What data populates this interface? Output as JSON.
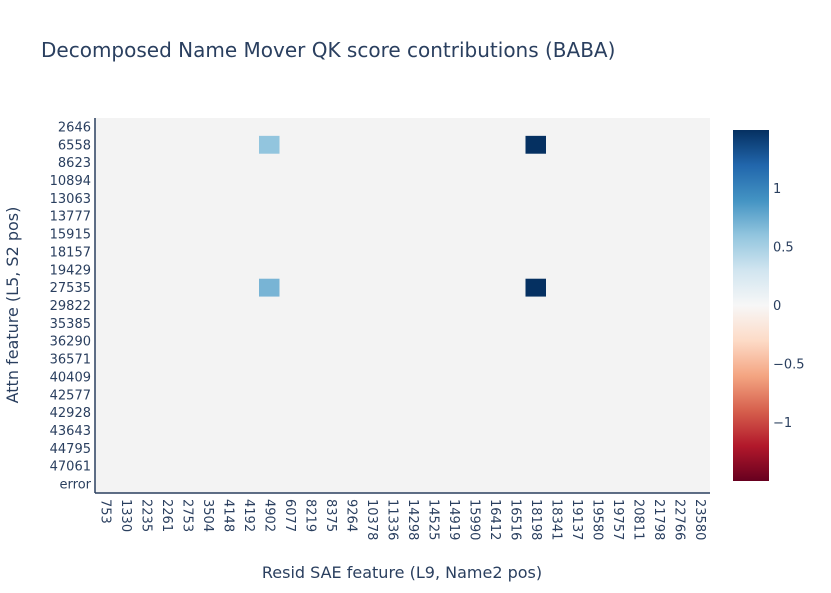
{
  "chart_data": {
    "type": "heatmap",
    "title": "Decomposed Name Mover QK score contributions (BABA)",
    "xlabel": "Resid SAE feature (L9, Name2 pos)",
    "ylabel": "Attn feature (L5, S2 pos)",
    "x_ticks": [
      "753",
      "1330",
      "2235",
      "2261",
      "2753",
      "3504",
      "4148",
      "4192",
      "4902",
      "6077",
      "8219",
      "8375",
      "9264",
      "10378",
      "11336",
      "14298",
      "14525",
      "14919",
      "15990",
      "16412",
      "16516",
      "18198",
      "18341",
      "19137",
      "19580",
      "19757",
      "20811",
      "21798",
      "22766",
      "23580"
    ],
    "y_ticks": [
      "2646",
      "6558",
      "8623",
      "10894",
      "13063",
      "13777",
      "15915",
      "18157",
      "19429",
      "27535",
      "29822",
      "35385",
      "36290",
      "36571",
      "40409",
      "42577",
      "42928",
      "43643",
      "44795",
      "47061",
      "error"
    ],
    "colorbar": {
      "ticks": [
        "1",
        "0.5",
        "0",
        "−0.5",
        "−1"
      ],
      "tick_values": [
        1,
        0.5,
        0,
        -0.5,
        -1
      ],
      "range": [
        -1.5,
        1.5
      ],
      "colorscale": "RdBu"
    },
    "notable_cells": [
      {
        "x": "18198",
        "y": "6558",
        "value": 1.5
      },
      {
        "x": "18198",
        "y": "27535",
        "value": 1.5
      },
      {
        "x": "4902",
        "y": "6558",
        "value": 0.6
      },
      {
        "x": "4902",
        "y": "27535",
        "value": 0.7
      }
    ]
  }
}
